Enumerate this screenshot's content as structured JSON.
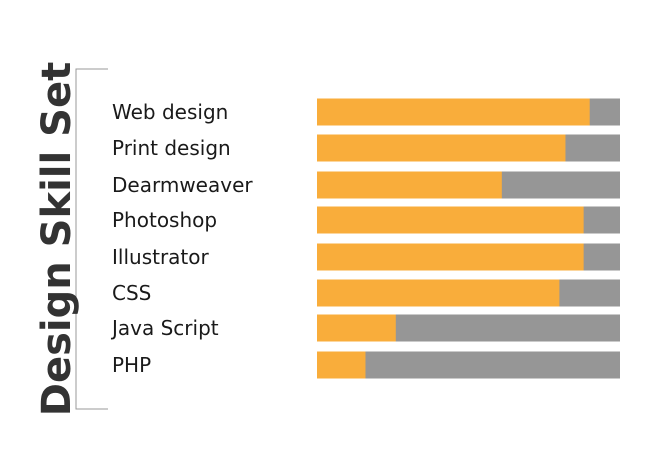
{
  "chart_data": {
    "type": "bar",
    "orientation": "horizontal",
    "stacked_to_total": true,
    "title": "Design Skill Set",
    "categories": [
      "Web design",
      "Print design",
      "Dearmweaver",
      "Photoshop",
      "Illustrator",
      "CSS",
      "Java Script",
      "PHP"
    ],
    "values": [
      90,
      82,
      61,
      88,
      88,
      80,
      26,
      16
    ],
    "max": 100,
    "xlim": [
      0,
      100
    ],
    "grid": false,
    "legend": "none"
  },
  "colors": {
    "skill_fill": "#f9ad3b",
    "track": "#969696",
    "title_text": "#333333",
    "label_text": "#1a1a1a",
    "bracket": "#999999"
  }
}
